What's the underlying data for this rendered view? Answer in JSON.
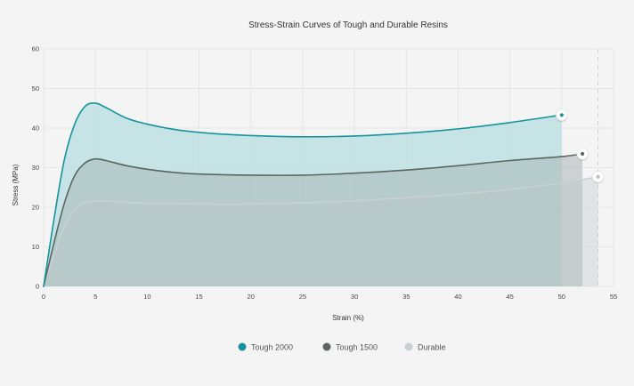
{
  "chart_data": {
    "type": "area",
    "title": "Stress-Strain Curves of Tough and Durable Resins",
    "xlabel": "Strain (%)",
    "ylabel": "Stress (MPa)",
    "xlim": [
      0,
      55
    ],
    "ylim": [
      0,
      60
    ],
    "xticks": [
      0,
      5,
      10,
      15,
      20,
      25,
      30,
      35,
      40,
      45,
      50,
      55
    ],
    "yticks": [
      0,
      10,
      20,
      30,
      40,
      50,
      60
    ],
    "grid": true,
    "legend_position": "bottom",
    "series": [
      {
        "name": "Tough 2000",
        "color": "#17939e",
        "fill": "#bde0e3",
        "points": [
          [
            0,
            0
          ],
          [
            1,
            17
          ],
          [
            2,
            32
          ],
          [
            3,
            41
          ],
          [
            4,
            45.5
          ],
          [
            5,
            46.3
          ],
          [
            6,
            45.2
          ],
          [
            8,
            42.5
          ],
          [
            10,
            41
          ],
          [
            13,
            39.5
          ],
          [
            16,
            38.7
          ],
          [
            20,
            38.1
          ],
          [
            25,
            37.8
          ],
          [
            30,
            38
          ],
          [
            35,
            38.7
          ],
          [
            40,
            39.8
          ],
          [
            45,
            41.4
          ],
          [
            50,
            43.3
          ]
        ]
      },
      {
        "name": "Tough 1500",
        "color": "#5c6660",
        "fill": "#a9b7b4",
        "points": [
          [
            0,
            0
          ],
          [
            1,
            11
          ],
          [
            2,
            21
          ],
          [
            3,
            28
          ],
          [
            4,
            31.2
          ],
          [
            5,
            32.2
          ],
          [
            6,
            31.8
          ],
          [
            8,
            30.5
          ],
          [
            10,
            29.6
          ],
          [
            13,
            28.7
          ],
          [
            16,
            28.3
          ],
          [
            20,
            28.1
          ],
          [
            25,
            28.1
          ],
          [
            30,
            28.6
          ],
          [
            35,
            29.4
          ],
          [
            40,
            30.5
          ],
          [
            45,
            31.8
          ],
          [
            50,
            32.8
          ],
          [
            52,
            33.5
          ]
        ]
      },
      {
        "name": "Durable",
        "color": "#c9d0d2",
        "fill": "#bcc5c6",
        "points": [
          [
            0,
            0
          ],
          [
            1,
            8
          ],
          [
            2,
            15
          ],
          [
            3,
            19.5
          ],
          [
            4,
            21.2
          ],
          [
            5,
            21.6
          ],
          [
            6,
            21.6
          ],
          [
            8,
            21.3
          ],
          [
            10,
            21
          ],
          [
            15,
            20.8
          ],
          [
            20,
            20.8
          ],
          [
            25,
            21.1
          ],
          [
            30,
            21.6
          ],
          [
            35,
            22.4
          ],
          [
            40,
            23.3
          ],
          [
            45,
            24.5
          ],
          [
            50,
            26.1
          ],
          [
            53.5,
            27.7
          ]
        ]
      }
    ],
    "reference_line_x": 53.5
  },
  "colors": {
    "background": "#f4f4f4",
    "grid": "#e6e6e6",
    "marker_fill": "#ffffff"
  }
}
